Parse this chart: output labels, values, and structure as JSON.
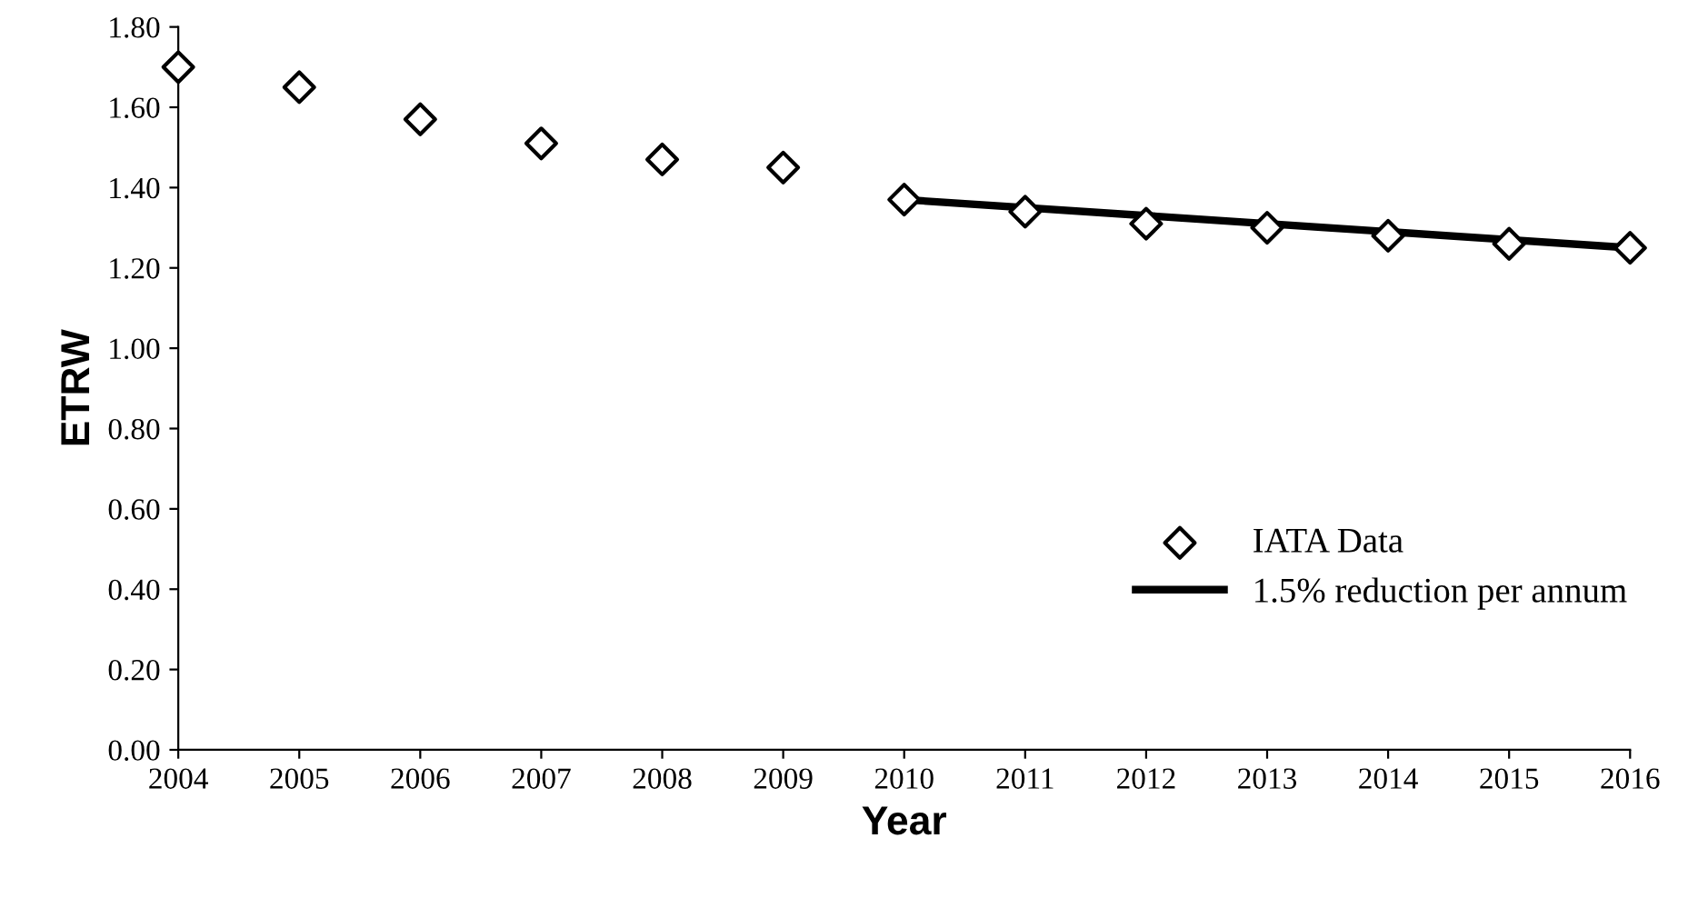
{
  "chart_data": {
    "type": "scatter",
    "xlabel": "Year",
    "ylabel": "ETRW",
    "xlim": [
      2004,
      2016
    ],
    "xticks": [
      2004,
      2005,
      2006,
      2007,
      2008,
      2009,
      2010,
      2011,
      2012,
      2013,
      2014,
      2015,
      2016
    ],
    "ylim": [
      0,
      1.8
    ],
    "yticks": [
      {
        "value": 0,
        "label": "0.00"
      },
      {
        "value": 0.2,
        "label": "0.20"
      },
      {
        "value": 0.4,
        "label": "0.40"
      },
      {
        "value": 0.6,
        "label": "0.60"
      },
      {
        "value": 0.8,
        "label": "0.80"
      },
      {
        "value": 1.0,
        "label": "1.00"
      },
      {
        "value": 1.2,
        "label": "1.20"
      },
      {
        "value": 1.4,
        "label": "1.40"
      },
      {
        "value": 1.6,
        "label": "1.60"
      },
      {
        "value": 1.8,
        "label": "1.80"
      }
    ],
    "grid": false,
    "legend": "lower right",
    "series": [
      {
        "name": "IATA Data",
        "marker": "diamond",
        "color": "#000000",
        "x": [
          2004,
          2005,
          2006,
          2007,
          2008,
          2009,
          2010,
          2011,
          2012,
          2013,
          2014,
          2015,
          2016
        ],
        "values": [
          1.7,
          1.65,
          1.57,
          1.51,
          1.47,
          1.45,
          1.37,
          1.34,
          1.31,
          1.3,
          1.28,
          1.26,
          1.25
        ]
      },
      {
        "name": "1.5% reduction per annum",
        "type": "line",
        "marker": "none",
        "line_style": "solid",
        "color": "#000000",
        "x": [
          2010,
          2016
        ],
        "values": [
          1.37,
          1.25
        ]
      }
    ]
  }
}
